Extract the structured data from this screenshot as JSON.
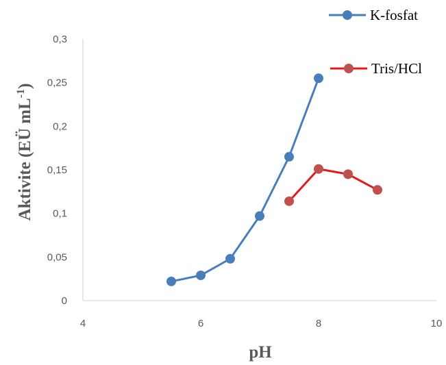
{
  "chart_data": {
    "type": "scatter",
    "xlabel": "pH",
    "ylabel_main": "Aktivite (EÜ mL",
    "ylabel_sup": "-1",
    "ylabel_close": ")",
    "xlim": [
      4,
      10
    ],
    "ylim": [
      0,
      0.3
    ],
    "x_ticks": [
      4,
      6,
      8,
      10
    ],
    "x_tick_labels": [
      "4",
      "6",
      "8",
      "10"
    ],
    "y_ticks": [
      0,
      0.05,
      0.1,
      0.15,
      0.2,
      0.25,
      0.3
    ],
    "y_tick_labels": [
      "0",
      "0,05",
      "0,1",
      "0,15",
      "0,2",
      "0,25",
      "0,3"
    ],
    "grid": false,
    "legend_position": "top-right",
    "series": [
      {
        "name": "K-fosfat",
        "color": "#4a7ebb",
        "x": [
          5.5,
          6.0,
          6.5,
          7.0,
          7.5,
          8.0
        ],
        "y": [
          0.022,
          0.029,
          0.048,
          0.097,
          0.165,
          0.255
        ]
      },
      {
        "name": "Tris/HCl",
        "color": "#e31a1c",
        "marker_color": "#c0504d",
        "x": [
          7.5,
          8.0,
          8.5,
          9.0
        ],
        "y": [
          0.114,
          0.151,
          0.145,
          0.127
        ]
      }
    ]
  }
}
